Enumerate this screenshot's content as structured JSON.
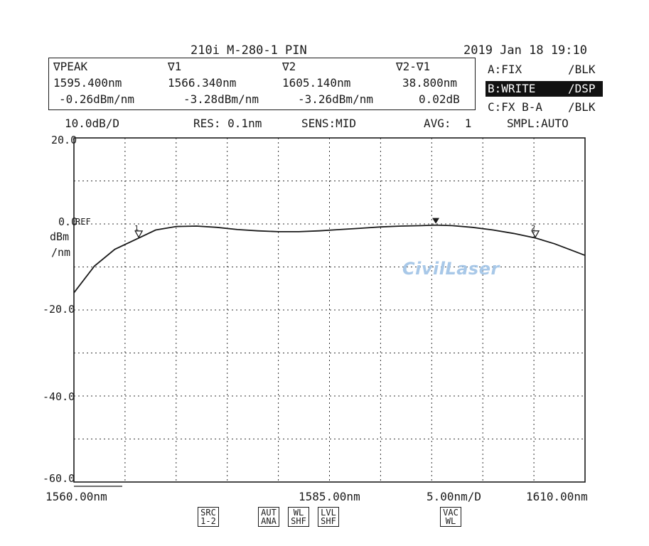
{
  "instrument": {
    "title": "210i M-280-1 PIN",
    "datetime": "2019 Jan 18 19:10"
  },
  "markers": {
    "peak": {
      "label": "∇PEAK",
      "wavelength": "1595.400nm",
      "level": "-0.26dBm/nm"
    },
    "m1": {
      "label": "∇1",
      "wavelength": "1566.340nm",
      "level": "-3.28dBm/nm"
    },
    "m2": {
      "label": "∇2",
      "wavelength": "1605.140nm",
      "level": "-3.26dBm/nm"
    },
    "delta": {
      "label": "∇2-∇1",
      "wavelength": "38.800nm",
      "level": "0.02dB"
    }
  },
  "traces": [
    {
      "name": "A:FIX",
      "mode": "/BLK",
      "active": false
    },
    {
      "name": "B:WRITE",
      "mode": "/DSP",
      "active": true
    },
    {
      "name": "C:FX B-A",
      "mode": "/BLK",
      "active": false
    }
  ],
  "settings": {
    "scale": "10.0dB/D",
    "res": "RES: 0.1nm",
    "sens": "SENS:MID",
    "avg": "AVG:  1",
    "smpl": "SMPL:AUTO"
  },
  "axis": {
    "y_ticks": [
      "20.0",
      "0.0",
      "-20.0",
      "-40.0",
      "-60.0"
    ],
    "ref_label": "REF",
    "y_unit_1": "dBm",
    "y_unit_2": "/nm",
    "x_start": "1560.00nm",
    "x_center": "1585.00nm",
    "x_span": "5.00nm/D",
    "x_stop": "1610.00nm"
  },
  "marker_flags": {
    "m1": "1",
    "m2": "2"
  },
  "softkeys": [
    {
      "line1": "SRC",
      "line2": "1-2"
    },
    {
      "line1": "AUT",
      "line2": "ANA"
    },
    {
      "line1": "WL",
      "line2": "SHF"
    },
    {
      "line1": "LVL",
      "line2": "SHF"
    },
    {
      "line1": "VAC",
      "line2": "WL"
    }
  ],
  "watermark": "CivilLaser",
  "chart_data": {
    "type": "line",
    "xlim": [
      1560,
      1610
    ],
    "ylim": [
      -60,
      20
    ],
    "grid": true,
    "x_divisions": 10,
    "y_divisions": 8,
    "series": [
      {
        "x": [
          1560,
          1562,
          1564,
          1566.34,
          1568,
          1570,
          1572,
          1574,
          1576,
          1578,
          1580,
          1582,
          1584,
          1586,
          1588,
          1590,
          1592,
          1594,
          1595.4,
          1597,
          1599,
          1601,
          1603,
          1605.14,
          1607,
          1609,
          1610
        ],
        "y": [
          -16.0,
          -9.8,
          -5.9,
          -3.28,
          -1.4,
          -0.6,
          -0.5,
          -0.8,
          -1.3,
          -1.6,
          -1.8,
          -1.8,
          -1.6,
          -1.3,
          -1.0,
          -0.7,
          -0.5,
          -0.4,
          -0.26,
          -0.4,
          -0.8,
          -1.4,
          -2.2,
          -3.26,
          -4.6,
          -6.4,
          -7.3
        ]
      }
    ],
    "markers": [
      {
        "name": "peak",
        "x": 1595.4,
        "y": -0.26
      },
      {
        "name": "1",
        "x": 1566.34,
        "y": -3.28
      },
      {
        "name": "2",
        "x": 1605.14,
        "y": -3.26
      }
    ]
  }
}
